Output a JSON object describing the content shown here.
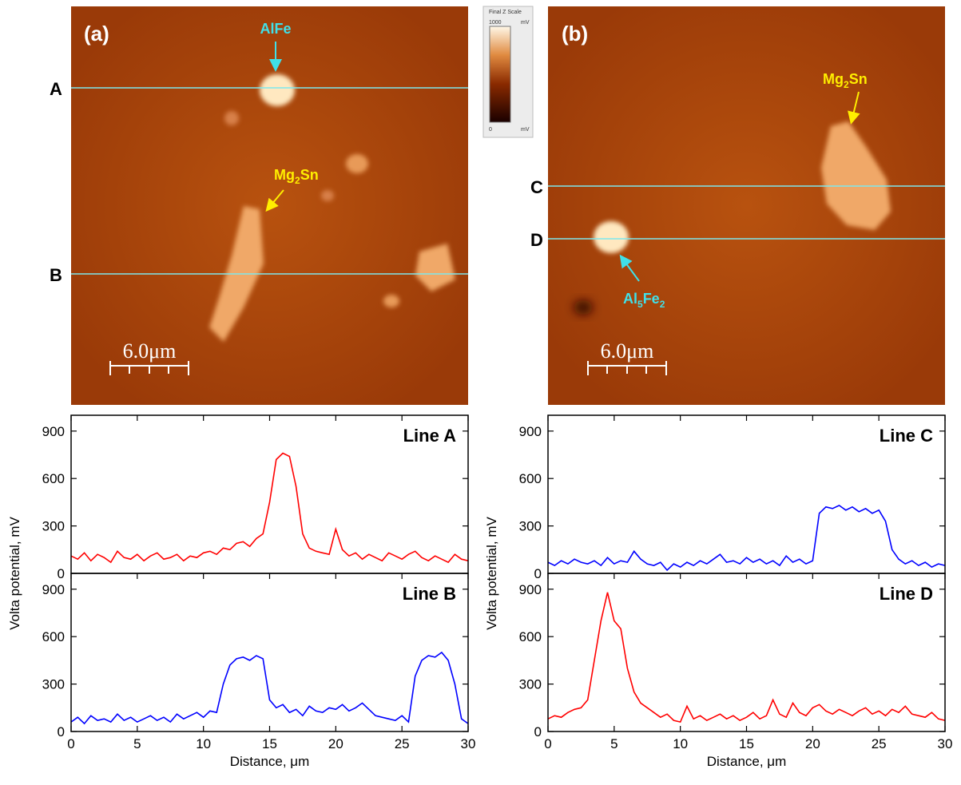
{
  "images": [
    {
      "label": "(a)",
      "lines": [
        "A",
        "B"
      ],
      "phase1": "AlFe",
      "phase2": [
        "Mg",
        "2",
        "Sn"
      ],
      "scale_bar": "6.0μm"
    },
    {
      "label": "(b)",
      "lines": [
        "C",
        "D"
      ],
      "phase1": [
        "Al",
        "5",
        "Fe",
        "2"
      ],
      "phase2": [
        "Mg",
        "2",
        "Sn"
      ],
      "scale_bar": "6.0μm"
    }
  ],
  "color_scale": {
    "title": "Final Z Scale",
    "max": "1000",
    "max_unit": "mV",
    "min": "0",
    "min_unit": "mV"
  },
  "chart_data": [
    {
      "type": "line",
      "title": "Line A",
      "ylabel": "Volta potential, mV",
      "ylim": [
        0,
        1000
      ],
      "yticks": [
        0,
        300,
        600,
        900
      ],
      "xlim": [
        0,
        30
      ],
      "x": [
        0,
        0.5,
        1,
        1.5,
        2,
        2.5,
        3,
        3.5,
        4,
        4.5,
        5,
        5.5,
        6,
        6.5,
        7,
        7.5,
        8,
        8.5,
        9,
        9.5,
        10,
        10.5,
        11,
        11.5,
        12,
        12.5,
        13,
        13.5,
        14,
        14.5,
        15,
        15.5,
        16,
        16.5,
        17,
        17.5,
        18,
        18.5,
        19,
        19.5,
        20,
        20.5,
        21,
        21.5,
        22,
        22.5,
        23,
        23.5,
        24,
        24.5,
        25,
        25.5,
        26,
        26.5,
        27,
        27.5,
        28,
        28.5,
        29,
        29.5,
        30
      ],
      "series": [
        {
          "color": "#ff0000",
          "values": [
            110,
            90,
            130,
            80,
            120,
            100,
            70,
            140,
            100,
            90,
            120,
            80,
            110,
            130,
            90,
            100,
            120,
            80,
            110,
            100,
            130,
            140,
            120,
            160,
            150,
            190,
            200,
            170,
            220,
            250,
            450,
            720,
            760,
            740,
            550,
            250,
            160,
            140,
            130,
            120,
            280,
            150,
            110,
            130,
            90,
            120,
            100,
            80,
            130,
            110,
            90,
            120,
            140,
            100,
            80,
            110,
            90,
            70,
            120,
            90,
            80
          ]
        }
      ]
    },
    {
      "type": "line",
      "title": "Line B",
      "ylim": [
        0,
        1000
      ],
      "yticks": [
        0,
        300,
        600,
        900
      ],
      "xlim": [
        0,
        30
      ],
      "xticks": [
        0,
        5,
        10,
        15,
        20,
        25,
        30
      ],
      "xlabel": "Distance, μm",
      "x": [
        0,
        0.5,
        1,
        1.5,
        2,
        2.5,
        3,
        3.5,
        4,
        4.5,
        5,
        5.5,
        6,
        6.5,
        7,
        7.5,
        8,
        8.5,
        9,
        9.5,
        10,
        10.5,
        11,
        11.5,
        12,
        12.5,
        13,
        13.5,
        14,
        14.5,
        15,
        15.5,
        16,
        16.5,
        17,
        17.5,
        18,
        18.5,
        19,
        19.5,
        20,
        20.5,
        21,
        21.5,
        22,
        22.5,
        23,
        23.5,
        24,
        24.5,
        25,
        25.5,
        26,
        26.5,
        27,
        27.5,
        28,
        28.5,
        29,
        29.5,
        30
      ],
      "series": [
        {
          "color": "#0000ff",
          "values": [
            60,
            90,
            50,
            100,
            70,
            80,
            60,
            110,
            70,
            90,
            60,
            80,
            100,
            70,
            90,
            60,
            110,
            80,
            100,
            120,
            90,
            130,
            120,
            300,
            420,
            460,
            470,
            450,
            480,
            460,
            200,
            150,
            170,
            120,
            140,
            100,
            160,
            130,
            120,
            150,
            140,
            170,
            130,
            150,
            180,
            140,
            100,
            90,
            80,
            70,
            100,
            60,
            350,
            450,
            480,
            470,
            500,
            450,
            300,
            80,
            50
          ]
        }
      ]
    },
    {
      "type": "line",
      "title": "Line C",
      "ylabel": "Volta potential, mV",
      "ylim": [
        0,
        1000
      ],
      "yticks": [
        0,
        300,
        600,
        900
      ],
      "xlim": [
        0,
        30
      ],
      "x": [
        0,
        0.5,
        1,
        1.5,
        2,
        2.5,
        3,
        3.5,
        4,
        4.5,
        5,
        5.5,
        6,
        6.5,
        7,
        7.5,
        8,
        8.5,
        9,
        9.5,
        10,
        10.5,
        11,
        11.5,
        12,
        12.5,
        13,
        13.5,
        14,
        14.5,
        15,
        15.5,
        16,
        16.5,
        17,
        17.5,
        18,
        18.5,
        19,
        19.5,
        20,
        20.5,
        21,
        21.5,
        22,
        22.5,
        23,
        23.5,
        24,
        24.5,
        25,
        25.5,
        26,
        26.5,
        27,
        27.5,
        28,
        28.5,
        29,
        29.5,
        30
      ],
      "series": [
        {
          "color": "#0000ff",
          "values": [
            70,
            50,
            80,
            60,
            90,
            70,
            60,
            80,
            50,
            100,
            60,
            80,
            70,
            140,
            90,
            60,
            50,
            70,
            20,
            60,
            40,
            70,
            50,
            80,
            60,
            90,
            120,
            70,
            80,
            60,
            100,
            70,
            90,
            60,
            80,
            50,
            110,
            70,
            90,
            60,
            80,
            380,
            420,
            410,
            430,
            400,
            420,
            390,
            410,
            380,
            400,
            330,
            150,
            90,
            60,
            80,
            50,
            70,
            40,
            60,
            50
          ]
        }
      ]
    },
    {
      "type": "line",
      "title": "Line D",
      "ylim": [
        0,
        1000
      ],
      "yticks": [
        0,
        300,
        600,
        900
      ],
      "xlim": [
        0,
        30
      ],
      "xticks": [
        0,
        5,
        10,
        15,
        20,
        25,
        30
      ],
      "xlabel": "Distance, μm",
      "x": [
        0,
        0.5,
        1,
        1.5,
        2,
        2.5,
        3,
        3.5,
        4,
        4.5,
        5,
        5.5,
        6,
        6.5,
        7,
        7.5,
        8,
        8.5,
        9,
        9.5,
        10,
        10.5,
        11,
        11.5,
        12,
        12.5,
        13,
        13.5,
        14,
        14.5,
        15,
        15.5,
        16,
        16.5,
        17,
        17.5,
        18,
        18.5,
        19,
        19.5,
        20,
        20.5,
        21,
        21.5,
        22,
        22.5,
        23,
        23.5,
        24,
        24.5,
        25,
        25.5,
        26,
        26.5,
        27,
        27.5,
        28,
        28.5,
        29,
        29.5,
        30
      ],
      "series": [
        {
          "color": "#ff0000",
          "values": [
            80,
            100,
            90,
            120,
            140,
            150,
            200,
            450,
            700,
            880,
            700,
            650,
            400,
            250,
            180,
            150,
            120,
            90,
            110,
            70,
            60,
            160,
            80,
            100,
            70,
            90,
            110,
            80,
            100,
            70,
            90,
            120,
            80,
            100,
            200,
            110,
            90,
            180,
            120,
            100,
            150,
            170,
            130,
            110,
            140,
            120,
            100,
            130,
            150,
            110,
            130,
            100,
            140,
            120,
            160,
            110,
            100,
            90,
            120,
            80,
            70
          ]
        }
      ]
    }
  ]
}
